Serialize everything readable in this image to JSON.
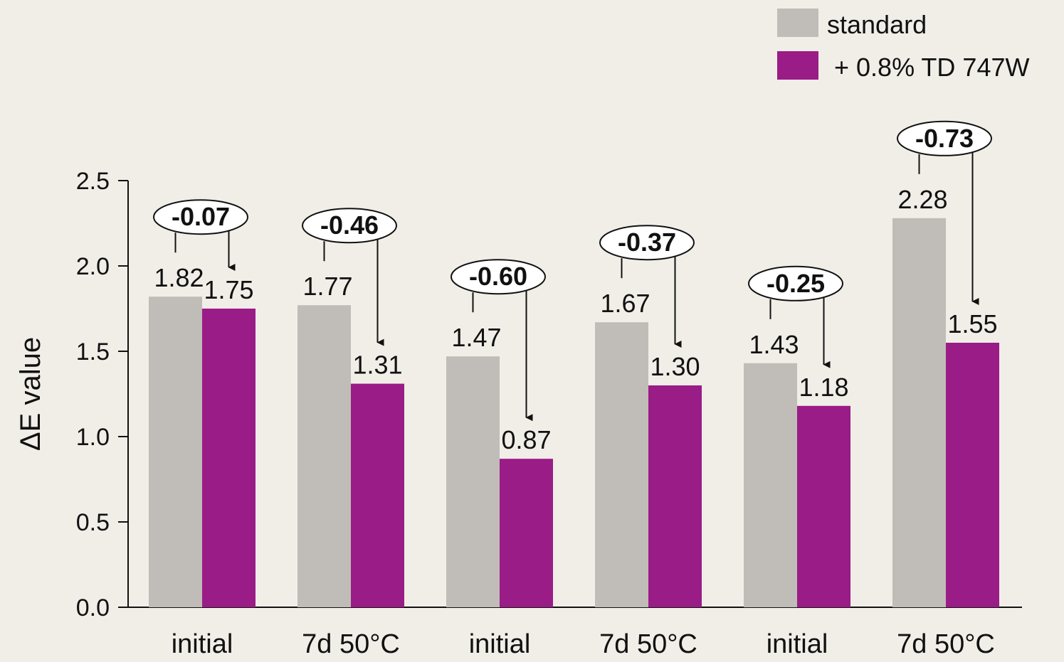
{
  "chart_data": {
    "type": "bar",
    "categories": [
      "initial",
      "7d 50°C",
      "initial",
      "7d 50°C",
      "initial",
      "7d 50°C"
    ],
    "series": [
      {
        "name": "standard",
        "color": "#c0bcb7",
        "values": [
          1.82,
          1.77,
          1.47,
          1.67,
          1.43,
          2.28
        ]
      },
      {
        "name": "+ 0.8% TD 747W",
        "color": "#9a1c86",
        "values": [
          1.75,
          1.31,
          0.87,
          1.3,
          1.18,
          1.55
        ]
      }
    ],
    "value_labels": {
      "standard": [
        "1.82",
        "1.77",
        "1.47",
        "1.67",
        "1.43",
        "2.28"
      ],
      "treated": [
        "1.75",
        "1.31",
        "0.87",
        "1.30",
        "1.18",
        "1.55"
      ]
    },
    "differences": [
      -0.07,
      -0.46,
      -0.6,
      -0.37,
      -0.25,
      -0.73
    ],
    "difference_labels": [
      "-0.07",
      "-0.46",
      "-0.60",
      "-0.37",
      "-0.25",
      "-0.73"
    ],
    "ylabel": "ΔE value",
    "xlabel": "",
    "ylim": [
      0,
      2.5
    ],
    "yticks": [
      0.0,
      0.5,
      1.0,
      1.5,
      2.0,
      2.5
    ],
    "ytick_labels": [
      "0.0",
      "0.5",
      "1.0",
      "1.5",
      "2.0",
      "2.5"
    ],
    "grid": false,
    "legend_position": "top-right"
  }
}
